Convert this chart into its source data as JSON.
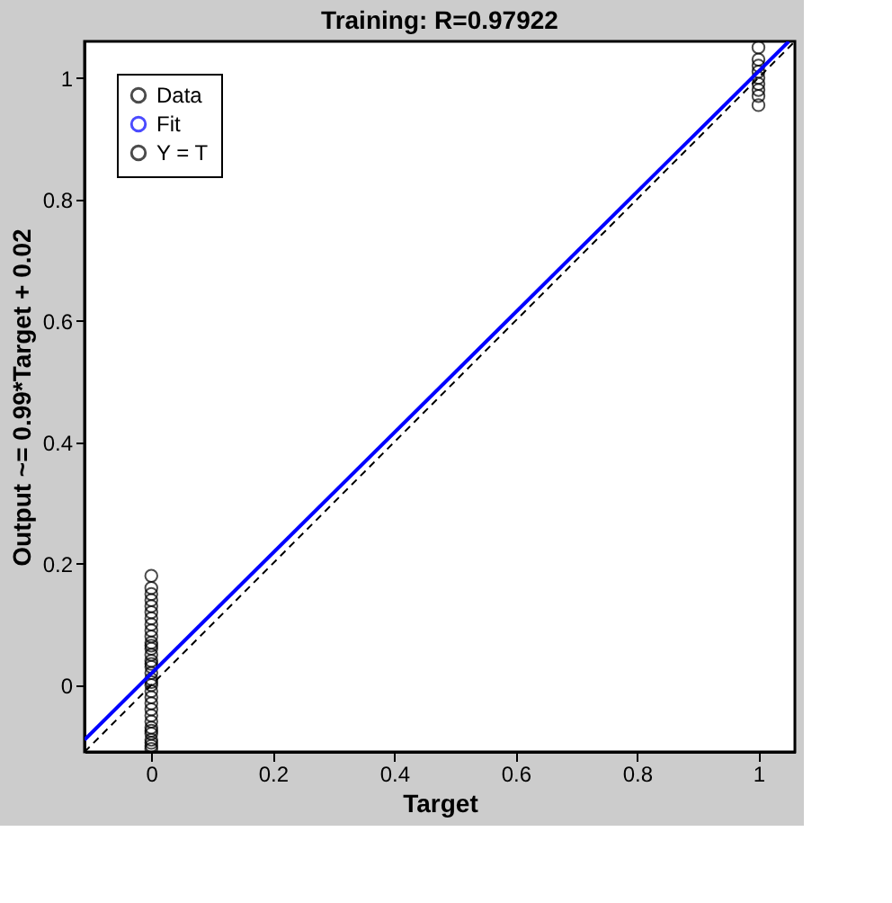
{
  "chart_data": {
    "type": "scatter",
    "title": "Training: R=0.97922",
    "xlabel": "Target",
    "ylabel": "Output ~= 0.99*Target + 0.02",
    "xlim": [
      -0.11,
      1.06
    ],
    "ylim": [
      -0.11,
      1.06
    ],
    "xticks": [
      0,
      0.2,
      0.4,
      0.6,
      0.8,
      1
    ],
    "yticks": [
      0,
      0.2,
      0.4,
      0.6,
      0.8,
      1
    ],
    "grid": false,
    "legend": "top left",
    "series": [
      {
        "name": "Data",
        "marker": "circle",
        "color": "#000000",
        "x": [
          0,
          0,
          0,
          0,
          0,
          0,
          0,
          0,
          0,
          0,
          0,
          0,
          0,
          0,
          0,
          0,
          0,
          0,
          0,
          0,
          0,
          0,
          0,
          0,
          0,
          0,
          0,
          0,
          0,
          0,
          0,
          0,
          0,
          0,
          1,
          1,
          1,
          1,
          1,
          1,
          1,
          1,
          1
        ],
        "values": [
          -0.105,
          -0.1,
          -0.09,
          -0.08,
          -0.07,
          -0.06,
          -0.05,
          -0.04,
          -0.03,
          -0.02,
          -0.01,
          0,
          0.01,
          0.02,
          0.03,
          0.04,
          0.05,
          0.06,
          0.07,
          0.08,
          0.09,
          0.1,
          0.11,
          0.12,
          0.13,
          0.14,
          0.15,
          0.16,
          0.18,
          -0.095,
          -0.075,
          0.005,
          0.035,
          0.065,
          0.955,
          0.97,
          0.98,
          0.99,
          1.0,
          1.01,
          1.02,
          1.03,
          1.05
        ]
      },
      {
        "name": "Fit",
        "type": "line",
        "line_style": "solid",
        "color": "#0000ff",
        "x": [
          -0.11,
          1.05
        ],
        "values": [
          -0.09,
          1.06
        ]
      },
      {
        "name": "Y = T",
        "type": "line",
        "line_style": "dashed",
        "color": "#000000",
        "x": [
          -0.11,
          1.06
        ],
        "values": [
          -0.11,
          1.06
        ]
      }
    ]
  }
}
